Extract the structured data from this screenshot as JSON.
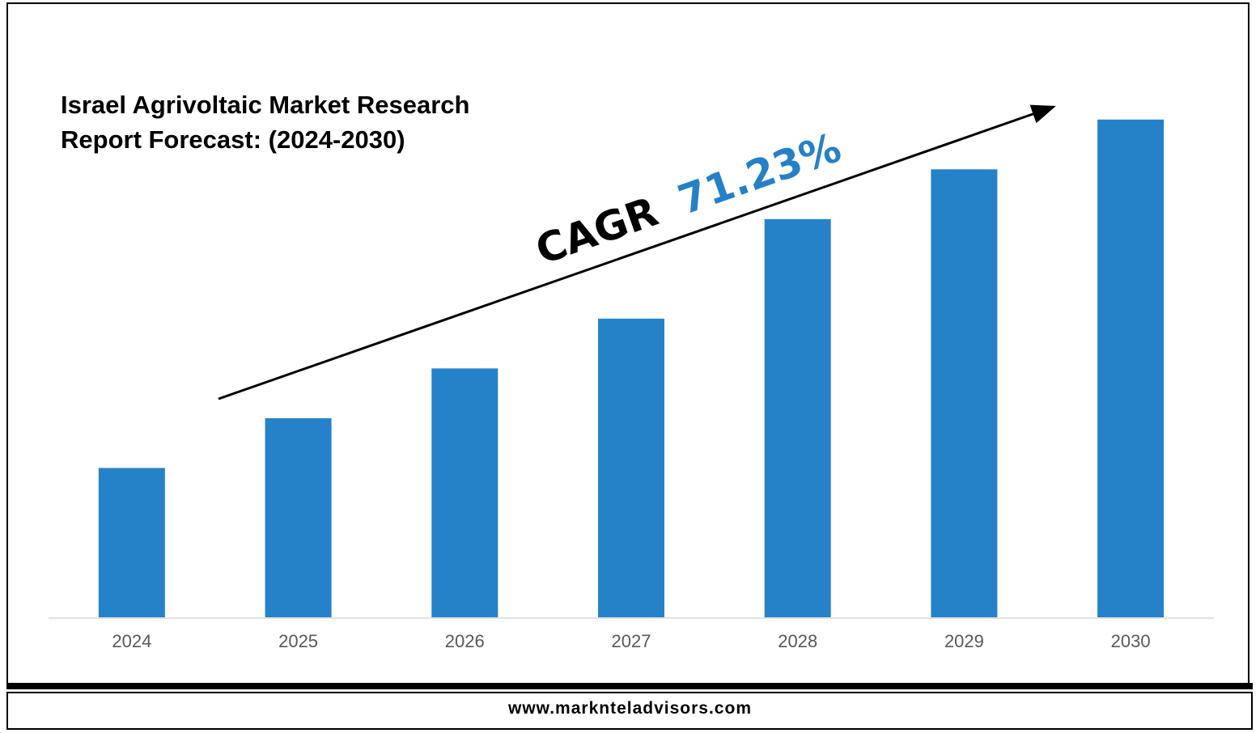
{
  "title_lines": [
    "Israel Agrivoltaic Market Research",
    "Report Forecast: (2024-2030)"
  ],
  "cagr": {
    "label": "CAGR",
    "value": "71.23%",
    "label_color": "#000000",
    "value_color": "#2580c7"
  },
  "footer": {
    "url": "www.marknteladvisors.com"
  },
  "chart_data": {
    "type": "bar",
    "title": "Israel Agrivoltaic Market Research Report Forecast: (2024-2030)",
    "categories": [
      "2024",
      "2025",
      "2026",
      "2027",
      "2028",
      "2029",
      "2030"
    ],
    "values": [
      3,
      4,
      5,
      6,
      8,
      9,
      10
    ],
    "ylim": [
      0,
      10.5
    ],
    "bar_color": "#2682c8",
    "grid": false,
    "legend": "none"
  }
}
